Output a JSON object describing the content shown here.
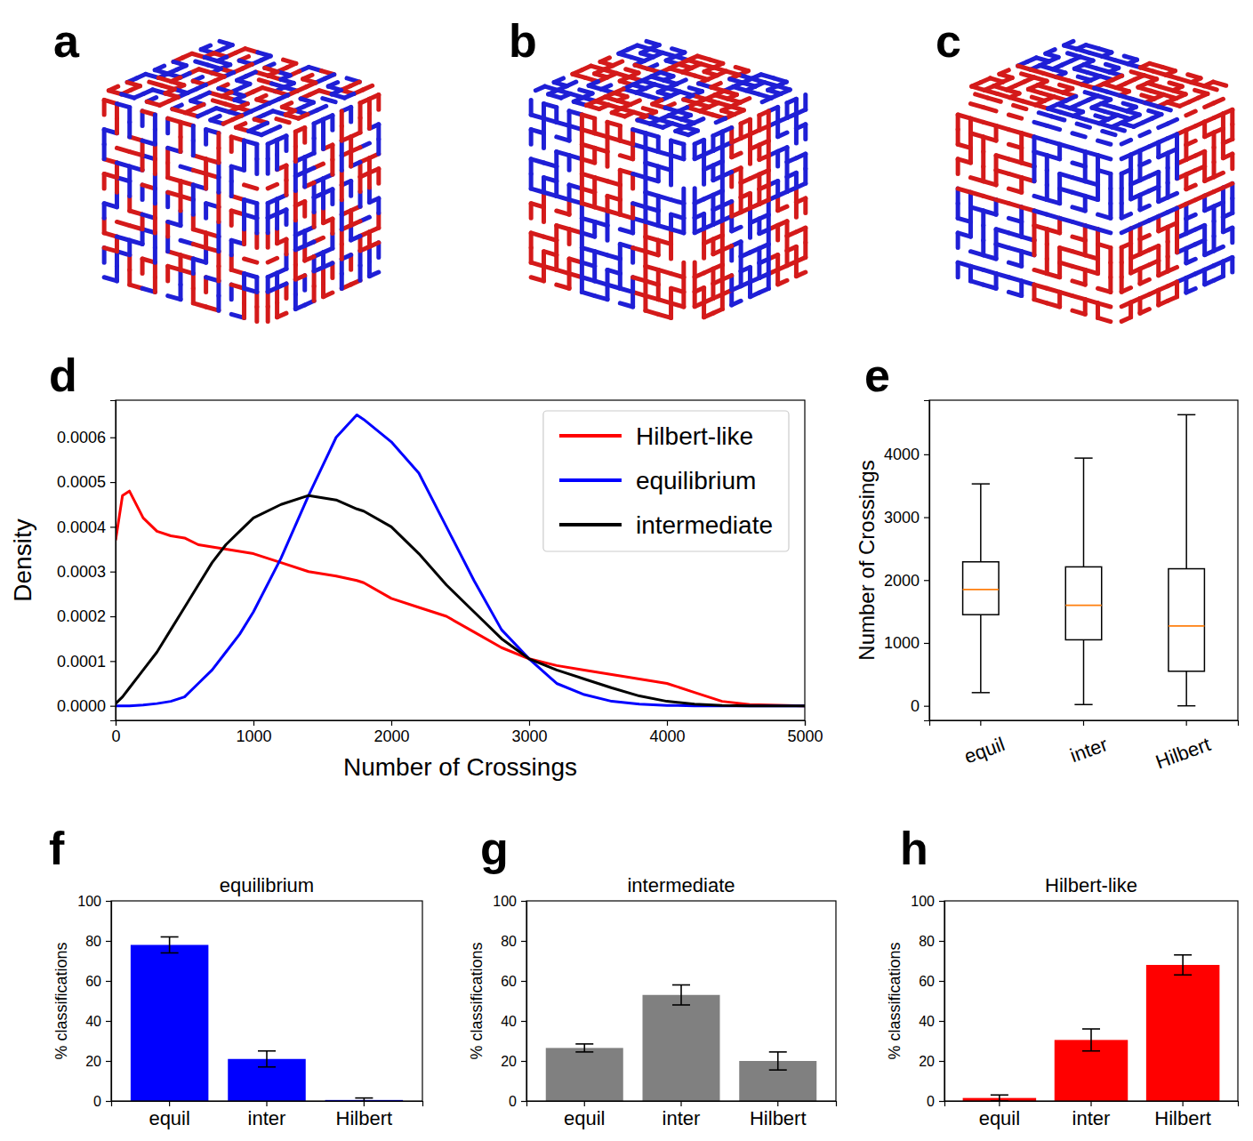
{
  "renders": [
    {
      "panel": "a"
    },
    {
      "panel": "b"
    },
    {
      "panel": "c"
    }
  ],
  "chart_data": [
    {
      "panel": "d",
      "type": "line",
      "x": [
        0,
        50,
        100,
        200,
        300,
        400,
        500,
        600,
        700,
        800,
        900,
        1000,
        1200,
        1400,
        1600,
        1750,
        1800,
        2000,
        2200,
        2400,
        2600,
        2800,
        3000,
        3200,
        3400,
        3600,
        3800,
        4000,
        4200,
        4400,
        4600,
        5000
      ],
      "series": [
        {
          "name": "Hilbert-like",
          "color": "#ff0000",
          "values": [
            0.00037,
            0.00047,
            0.00048,
            0.00042,
            0.00039,
            0.00038,
            0.000375,
            0.00036,
            0.000355,
            0.00035,
            0.000345,
            0.00034,
            0.00032,
            0.0003,
            0.00029,
            0.00028,
            0.000275,
            0.00024,
            0.00022,
            0.0002,
            0.000165,
            0.00013,
            0.000105,
            9e-05,
            8e-05,
            7e-05,
            6e-05,
            5e-05,
            3e-05,
            1e-05,
            3e-06,
            0
          ]
        },
        {
          "name": "equilibrium",
          "color": "#0000ff",
          "values": [
            0,
            0,
            0,
            2e-06,
            5e-06,
            1e-05,
            2e-05,
            5e-05,
            8e-05,
            0.00012,
            0.00016,
            0.00021,
            0.00033,
            0.00047,
            0.0006,
            0.00065,
            0.00064,
            0.00059,
            0.00052,
            0.0004,
            0.00028,
            0.00017,
            0.000105,
            5e-05,
            2.5e-05,
            1e-05,
            4e-06,
            1e-06,
            0,
            0,
            0,
            0
          ]
        },
        {
          "name": "intermediate",
          "color": "#000000",
          "values": [
            5e-06,
            2e-05,
            4e-05,
            8e-05,
            0.00012,
            0.00017,
            0.00022,
            0.00027,
            0.00032,
            0.00036,
            0.00039,
            0.00042,
            0.00045,
            0.00047,
            0.00046,
            0.00044,
            0.000435,
            0.0004,
            0.00034,
            0.00027,
            0.00021,
            0.00015,
            0.000105,
            8e-05,
            6e-05,
            4e-05,
            2.2e-05,
            1e-05,
            4e-06,
            1e-06,
            0,
            0
          ]
        }
      ],
      "xlim": [
        0,
        5000
      ],
      "xticks": [
        0,
        1000,
        2000,
        3000,
        4000,
        5000
      ],
      "ylim": [
        -3.25e-05,
        0.000683
      ],
      "yticks": [
        {
          "value": 0,
          "label": "0.0000"
        },
        {
          "value": 0.0001,
          "label": "0.0001"
        },
        {
          "value": 0.0002,
          "label": "0.0002"
        },
        {
          "value": 0.0003,
          "label": "0.0003"
        },
        {
          "value": 0.0004,
          "label": "0.0004"
        },
        {
          "value": 0.0005,
          "label": "0.0005"
        },
        {
          "value": 0.0006,
          "label": "0.0006"
        }
      ],
      "x_label": "Number of Crossings",
      "y_label": "Density",
      "legend": "upper right"
    },
    {
      "panel": "e",
      "type": "box",
      "categories": [
        "equil",
        "inter",
        "Hilbert"
      ],
      "whislo": [
        210,
        20,
        0
      ],
      "q1": [
        1450,
        1050,
        550
      ],
      "med": [
        1850,
        1600,
        1270
      ],
      "q3": [
        2290,
        2210,
        2180
      ],
      "whishi": [
        3530,
        3940,
        4630
      ],
      "ylim": [
        -231,
        4861
      ],
      "yticks": [
        0,
        1000,
        2000,
        3000,
        4000
      ],
      "y_label": "Number of Crossings"
    },
    {
      "panel": "f",
      "type": "bar",
      "title": "equilibrium",
      "categories": [
        "equil",
        "inter",
        "Hilbert"
      ],
      "values": [
        78,
        21,
        0.5
      ],
      "errors": [
        4,
        4,
        1
      ],
      "color": "#0000ff",
      "ylim": [
        0,
        100
      ],
      "yticks": [
        0,
        20,
        40,
        60,
        80,
        100
      ],
      "y_label": "% classifications"
    },
    {
      "panel": "g",
      "type": "bar",
      "title": "intermediate",
      "categories": [
        "equil",
        "inter",
        "Hilbert"
      ],
      "values": [
        26.5,
        53,
        20
      ],
      "errors": [
        2,
        5,
        4.5
      ],
      "color": "#808080",
      "ylim": [
        0,
        100
      ],
      "yticks": [
        0,
        20,
        40,
        60,
        80,
        100
      ],
      "y_label": "% classifications"
    },
    {
      "panel": "h",
      "type": "bar",
      "title": "Hilbert-like",
      "categories": [
        "equil",
        "inter",
        "Hilbert"
      ],
      "values": [
        1.5,
        30.5,
        68
      ],
      "errors": [
        1.5,
        5.5,
        5
      ],
      "color": "#ff0000",
      "ylim": [
        0,
        100
      ],
      "yticks": [
        0,
        20,
        40,
        60,
        80,
        100
      ],
      "y_label": "% classifications"
    }
  ]
}
